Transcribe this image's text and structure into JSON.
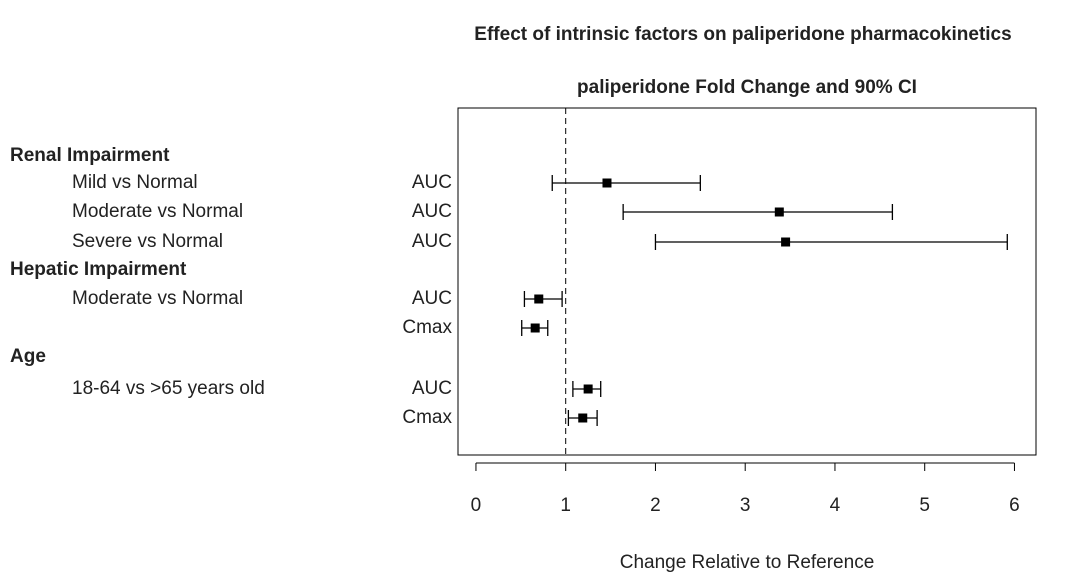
{
  "chart_data": {
    "type": "forest",
    "title": "Effect of intrinsic factors on paliperidone pharmacokinetics",
    "subtitle": "paliperidone Fold Change and 90% CI",
    "x_label": "Change Relative to Reference",
    "xlim": [
      -0.2,
      6.24
    ],
    "xticks": [
      0,
      1,
      2,
      3,
      4,
      5,
      6
    ],
    "reference": 1,
    "color": "#000000",
    "groups": [
      {
        "name": "Renal Impairment",
        "rows": [
          {
            "label": "Mild vs Normal",
            "metric": "AUC",
            "value": 1.46,
            "lower": 0.85,
            "upper": 2.5
          },
          {
            "label": "Moderate vs Normal",
            "metric": "AUC",
            "value": 3.38,
            "lower": 1.64,
            "upper": 4.64
          },
          {
            "label": "Severe vs Normal",
            "metric": "AUC",
            "value": 3.45,
            "lower": 2.0,
            "upper": 5.92
          }
        ]
      },
      {
        "name": "Hepatic Impairment",
        "rows": [
          {
            "label": "Moderate vs Normal",
            "metric": "AUC",
            "value": 0.7,
            "lower": 0.54,
            "upper": 0.96
          },
          {
            "label": null,
            "metric": "Cmax",
            "value": 0.66,
            "lower": 0.51,
            "upper": 0.8
          }
        ]
      },
      {
        "name": "Age",
        "rows": [
          {
            "label": "18-64 vs >65 years old",
            "metric": "AUC",
            "value": 1.25,
            "lower": 1.08,
            "upper": 1.39
          },
          {
            "label": null,
            "metric": "Cmax",
            "value": 1.19,
            "lower": 1.03,
            "upper": 1.35
          }
        ]
      }
    ]
  }
}
